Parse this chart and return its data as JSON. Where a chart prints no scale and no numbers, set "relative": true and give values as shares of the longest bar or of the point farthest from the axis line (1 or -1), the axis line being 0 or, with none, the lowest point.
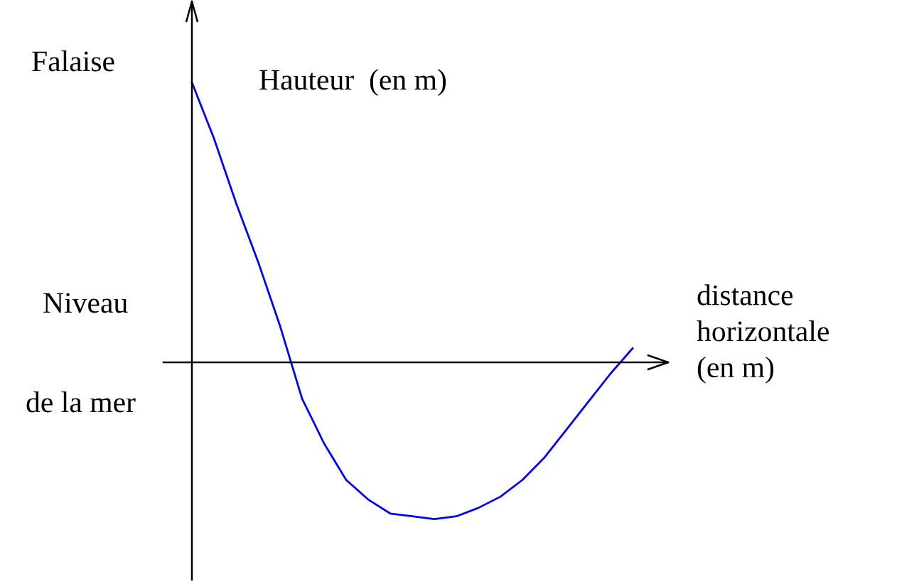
{
  "chart_data": {
    "type": "line",
    "relative": true,
    "ylabel": "Hauteur  (en m)",
    "xlabel": "distance\nhorizontale\n(en m)",
    "annotations": [
      "Falaise",
      "Niveau",
      "de la mer"
    ],
    "categories": [
      null,
      null,
      null,
      null,
      null,
      null,
      null,
      null,
      null,
      null,
      null,
      null,
      null,
      null,
      null,
      null,
      null,
      null,
      null,
      null,
      null
    ],
    "series": [
      {
        "color": "#0000ff",
        "values": [
          1,
          0.8,
          0.57,
          0.36,
          0.13,
          -0.13,
          -0.29,
          -0.42,
          -0.49,
          -0.54,
          -0.55,
          -0.56,
          -0.55,
          -0.52,
          -0.48,
          -0.42,
          -0.34,
          -0.24,
          -0.14,
          -0.04,
          0.05
        ]
      }
    ]
  }
}
